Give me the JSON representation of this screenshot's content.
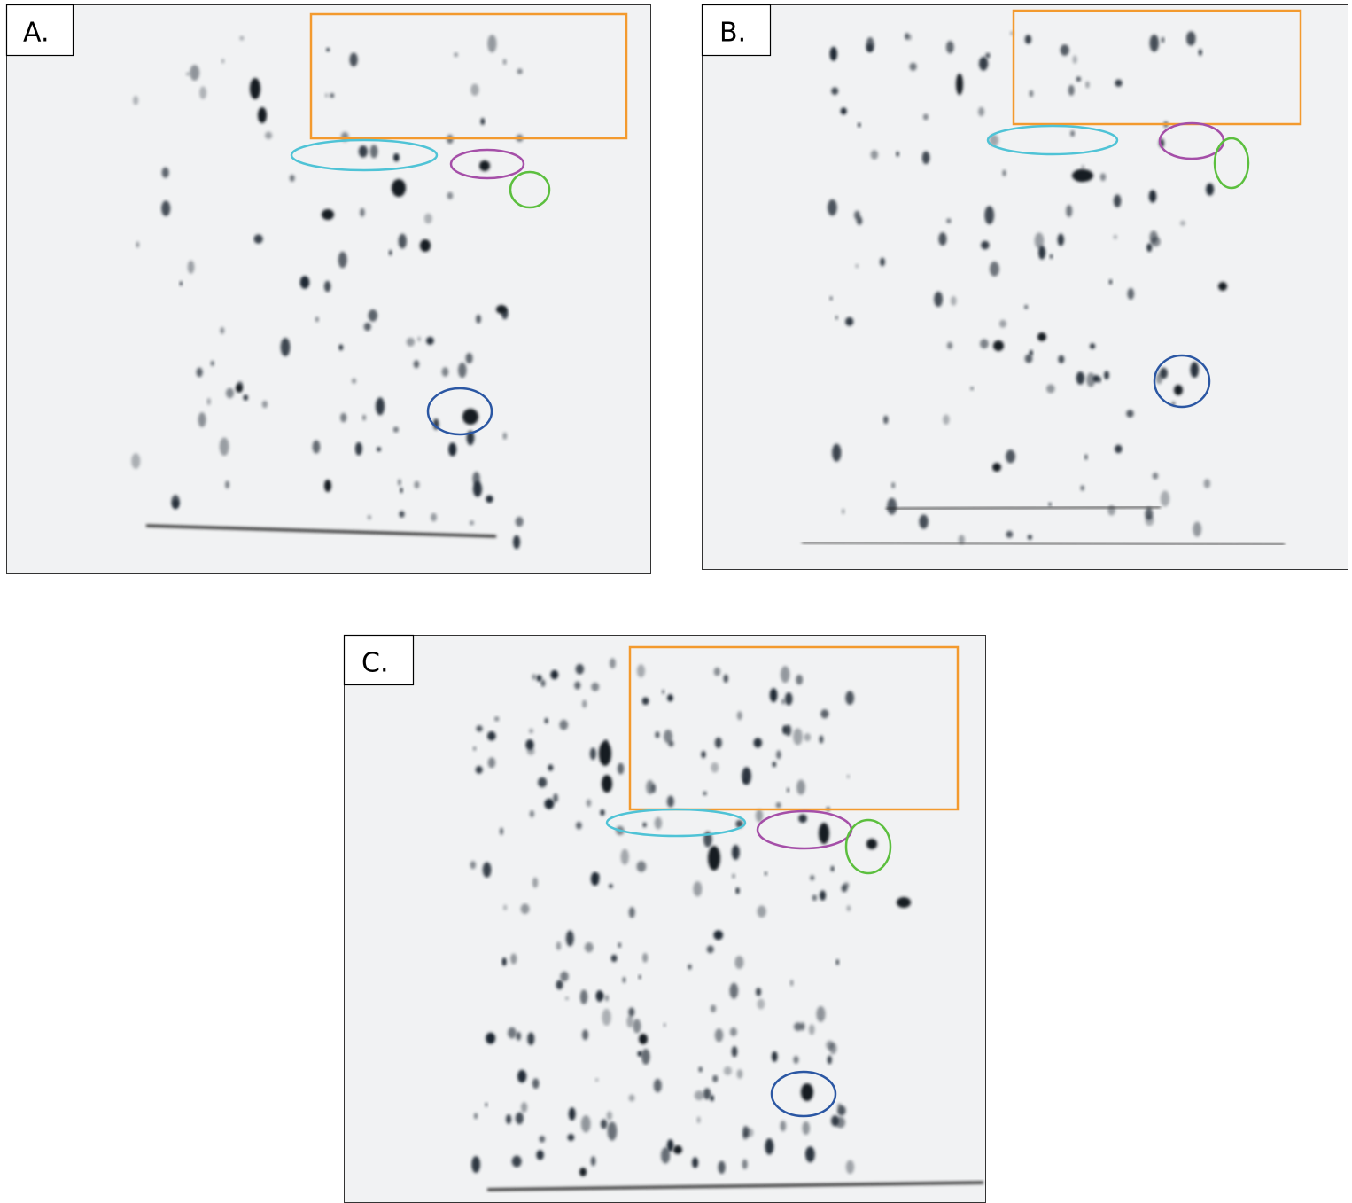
{
  "panels": [
    {
      "label": "A."
    },
    {
      "label": "B."
    },
    {
      "label": "C."
    }
  ]
}
